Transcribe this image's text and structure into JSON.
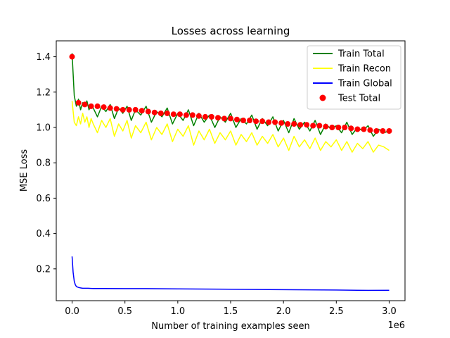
{
  "chart_data": {
    "type": "line",
    "title": "Losses across learning",
    "xlabel": "Number of training examples seen",
    "ylabel": "MSE Loss",
    "x_offset_label": "1e6",
    "xlim": [
      -150000,
      3150000
    ],
    "ylim": [
      0.02,
      1.49
    ],
    "x_ticks": [
      0,
      500000,
      1000000,
      1500000,
      2000000,
      2500000,
      3000000
    ],
    "x_tick_labels": [
      "0.0",
      "0.5",
      "1.0",
      "1.5",
      "2.0",
      "2.5",
      "3.0"
    ],
    "y_ticks": [
      0.2,
      0.4,
      0.6,
      0.8,
      1.0,
      1.2,
      1.4
    ],
    "y_tick_labels": [
      "0.2",
      "0.4",
      "0.6",
      "0.8",
      "1.0",
      "1.2",
      "1.4"
    ],
    "grid": false,
    "legend_position": "top-right",
    "series": [
      {
        "name": "Train Total",
        "kind": "line",
        "color": "#008000",
        "x": [
          0,
          20000,
          40000,
          60000,
          80000,
          100000,
          120000,
          140000,
          160000,
          180000,
          200000,
          240000,
          280000,
          320000,
          360000,
          400000,
          440000,
          480000,
          520000,
          560000,
          600000,
          650000,
          700000,
          750000,
          800000,
          850000,
          900000,
          950000,
          1000000,
          1050000,
          1100000,
          1150000,
          1200000,
          1250000,
          1300000,
          1350000,
          1400000,
          1450000,
          1500000,
          1550000,
          1600000,
          1650000,
          1700000,
          1750000,
          1800000,
          1850000,
          1900000,
          1950000,
          2000000,
          2050000,
          2100000,
          2150000,
          2200000,
          2250000,
          2300000,
          2350000,
          2400000,
          2450000,
          2500000,
          2550000,
          2600000,
          2650000,
          2700000,
          2750000,
          2800000,
          2850000,
          2900000,
          2950000,
          3000000
        ],
        "y": [
          1.42,
          1.18,
          1.12,
          1.16,
          1.1,
          1.14,
          1.12,
          1.15,
          1.1,
          1.13,
          1.11,
          1.06,
          1.12,
          1.09,
          1.13,
          1.05,
          1.11,
          1.08,
          1.12,
          1.04,
          1.1,
          1.07,
          1.12,
          1.03,
          1.09,
          1.06,
          1.11,
          1.02,
          1.08,
          1.04,
          1.1,
          1.01,
          1.08,
          1.03,
          1.07,
          1.0,
          1.06,
          1.03,
          1.08,
          1.0,
          1.05,
          1.02,
          1.07,
          0.99,
          1.05,
          1.01,
          1.06,
          0.98,
          1.04,
          0.97,
          1.05,
          0.99,
          1.03,
          0.98,
          1.04,
          0.96,
          1.02,
          0.99,
          1.01,
          0.97,
          1.03,
          0.96,
          1.0,
          0.98,
          1.01,
          0.95,
          0.99,
          0.97,
          0.98
        ]
      },
      {
        "name": "Train Recon",
        "kind": "line",
        "color": "#ffff00",
        "x": [
          0,
          20000,
          40000,
          60000,
          80000,
          100000,
          120000,
          140000,
          160000,
          180000,
          200000,
          240000,
          280000,
          320000,
          360000,
          400000,
          440000,
          480000,
          520000,
          560000,
          600000,
          650000,
          700000,
          750000,
          800000,
          850000,
          900000,
          950000,
          1000000,
          1050000,
          1100000,
          1150000,
          1200000,
          1250000,
          1300000,
          1350000,
          1400000,
          1450000,
          1500000,
          1550000,
          1600000,
          1650000,
          1700000,
          1750000,
          1800000,
          1850000,
          1900000,
          1950000,
          2000000,
          2050000,
          2100000,
          2150000,
          2200000,
          2250000,
          2300000,
          2350000,
          2400000,
          2450000,
          2500000,
          2550000,
          2600000,
          2650000,
          2700000,
          2750000,
          2800000,
          2850000,
          2900000,
          2950000,
          3000000
        ],
        "y": [
          1.15,
          1.03,
          1.01,
          1.06,
          1.02,
          1.08,
          1.03,
          1.06,
          1.0,
          1.05,
          1.02,
          0.97,
          1.04,
          1.0,
          1.05,
          0.95,
          1.02,
          0.98,
          1.04,
          0.94,
          1.01,
          0.97,
          1.03,
          0.93,
          1.0,
          0.96,
          1.02,
          0.92,
          0.99,
          0.95,
          1.01,
          0.9,
          0.98,
          0.93,
          0.99,
          0.91,
          0.97,
          0.93,
          0.98,
          0.9,
          0.96,
          0.92,
          0.97,
          0.9,
          0.95,
          0.91,
          0.96,
          0.89,
          0.94,
          0.87,
          0.95,
          0.89,
          0.93,
          0.88,
          0.94,
          0.87,
          0.92,
          0.89,
          0.93,
          0.87,
          0.92,
          0.86,
          0.91,
          0.88,
          0.92,
          0.86,
          0.9,
          0.89,
          0.87
        ]
      },
      {
        "name": "Train Global",
        "kind": "line",
        "color": "#0000ff",
        "x": [
          0,
          10000,
          20000,
          30000,
          40000,
          60000,
          80000,
          100000,
          150000,
          200000,
          300000,
          500000,
          700000,
          1000000,
          1500000,
          2000000,
          2500000,
          2700000,
          2800000,
          3000000
        ],
        "y": [
          0.27,
          0.18,
          0.13,
          0.11,
          0.1,
          0.095,
          0.092,
          0.09,
          0.09,
          0.089,
          0.089,
          0.088,
          0.088,
          0.087,
          0.085,
          0.082,
          0.08,
          0.079,
          0.078,
          0.079
        ]
      },
      {
        "name": "Test Total",
        "kind": "scatter",
        "color": "#ff0000",
        "x": [
          0,
          60000,
          120000,
          180000,
          240000,
          300000,
          360000,
          420000,
          480000,
          540000,
          600000,
          660000,
          720000,
          780000,
          840000,
          900000,
          960000,
          1020000,
          1080000,
          1140000,
          1200000,
          1260000,
          1320000,
          1380000,
          1440000,
          1500000,
          1560000,
          1620000,
          1680000,
          1740000,
          1800000,
          1860000,
          1920000,
          1980000,
          2040000,
          2100000,
          2160000,
          2220000,
          2280000,
          2340000,
          2400000,
          2460000,
          2520000,
          2580000,
          2640000,
          2700000,
          2760000,
          2820000,
          2880000,
          2940000,
          3000000
        ],
        "y": [
          1.4,
          1.14,
          1.13,
          1.12,
          1.12,
          1.115,
          1.11,
          1.105,
          1.1,
          1.1,
          1.1,
          1.095,
          1.09,
          1.085,
          1.08,
          1.08,
          1.075,
          1.075,
          1.07,
          1.07,
          1.065,
          1.06,
          1.06,
          1.055,
          1.05,
          1.05,
          1.045,
          1.04,
          1.04,
          1.035,
          1.035,
          1.03,
          1.03,
          1.025,
          1.02,
          1.02,
          1.015,
          1.015,
          1.01,
          1.01,
          1.005,
          1.0,
          1.0,
          1.0,
          0.995,
          0.99,
          0.99,
          0.985,
          0.98,
          0.98,
          0.98
        ]
      }
    ]
  }
}
